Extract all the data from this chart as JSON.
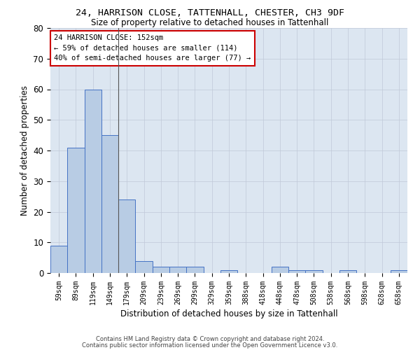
{
  "title1": "24, HARRISON CLOSE, TATTENHALL, CHESTER, CH3 9DF",
  "title2": "Size of property relative to detached houses in Tattenhall",
  "xlabel": "Distribution of detached houses by size in Tattenhall",
  "ylabel": "Number of detached properties",
  "categories": [
    "59sqm",
    "89sqm",
    "119sqm",
    "149sqm",
    "179sqm",
    "209sqm",
    "239sqm",
    "269sqm",
    "299sqm",
    "329sqm",
    "359sqm",
    "388sqm",
    "418sqm",
    "448sqm",
    "478sqm",
    "508sqm",
    "538sqm",
    "568sqm",
    "598sqm",
    "628sqm",
    "658sqm"
  ],
  "values": [
    9,
    41,
    60,
    45,
    24,
    4,
    2,
    2,
    2,
    0,
    1,
    0,
    0,
    2,
    1,
    1,
    0,
    1,
    0,
    0,
    1
  ],
  "bar_color": "#b8cce4",
  "bar_edge_color": "#4472c4",
  "annotation_text1": "24 HARRISON CLOSE: 152sqm",
  "annotation_text2": "← 59% of detached houses are smaller (114)",
  "annotation_text3": "40% of semi-detached houses are larger (77) →",
  "annotation_box_color": "#ffffff",
  "annotation_box_edge": "#cc0000",
  "ylim": [
    0,
    80
  ],
  "yticks": [
    0,
    10,
    20,
    30,
    40,
    50,
    60,
    70,
    80
  ],
  "grid_color": "#c0c8d8",
  "plot_bg_color": "#dce6f1",
  "footer1": "Contains HM Land Registry data © Crown copyright and database right 2024.",
  "footer2": "Contains public sector information licensed under the Open Government Licence v3.0."
}
